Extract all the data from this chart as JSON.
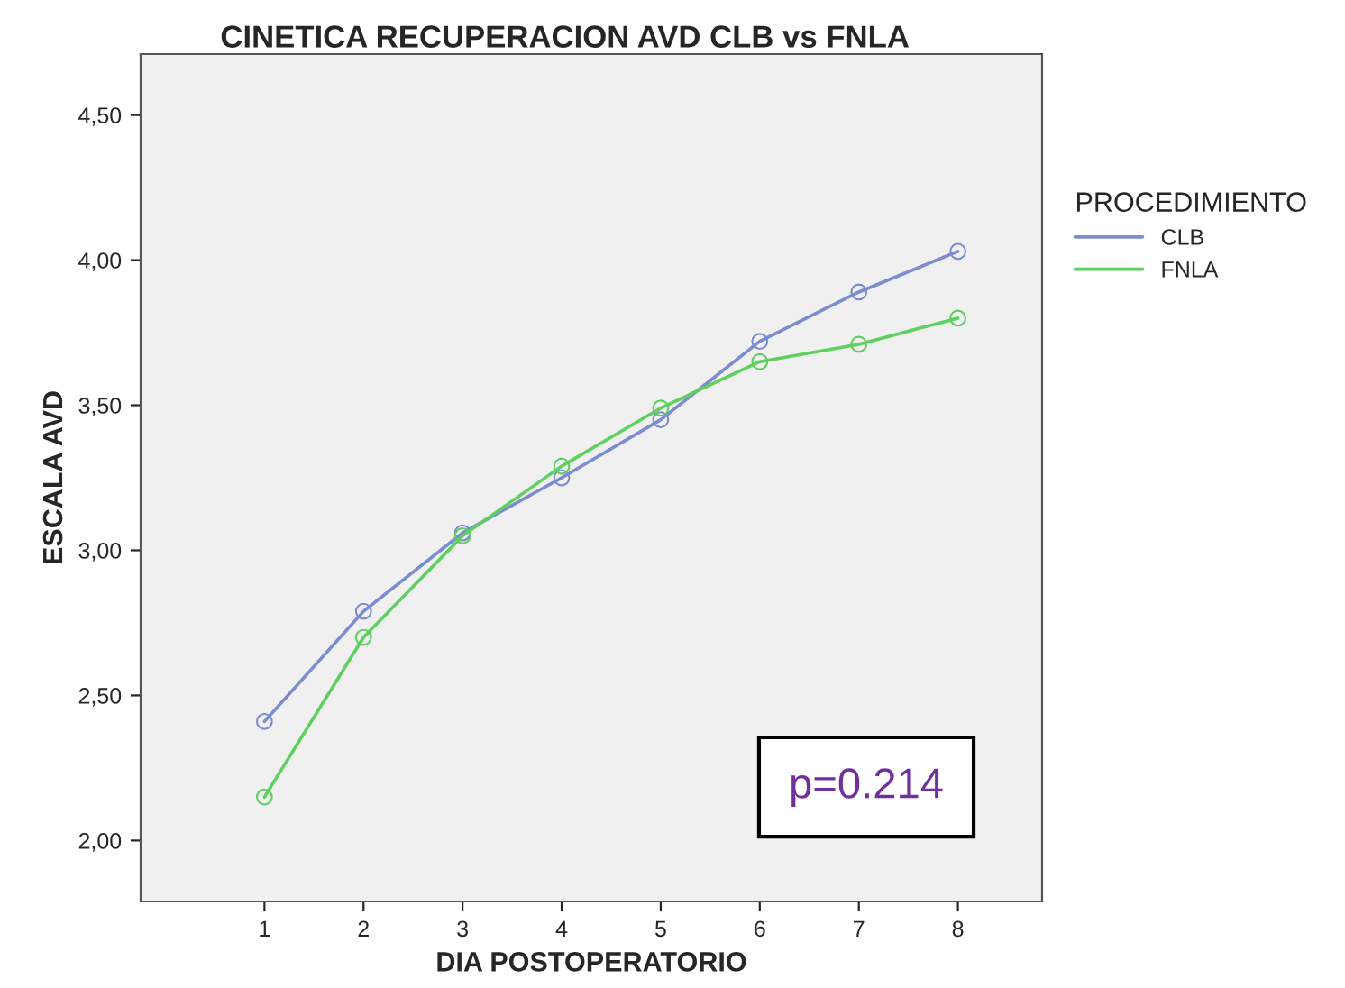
{
  "chart_data": {
    "type": "line",
    "title": "CINETICA RECUPERACION AVD CLB vs FNLA",
    "xlabel": "DIA POSTOPERATORIO",
    "ylabel": "ESCALA AVD",
    "legend_title": "PROCEDIMIENTO",
    "x": [
      1,
      2,
      3,
      4,
      5,
      6,
      7,
      8
    ],
    "series": [
      {
        "name": "CLB",
        "color": "#7b8cd0",
        "values": [
          2.41,
          2.79,
          3.06,
          3.25,
          3.45,
          3.72,
          3.89,
          4.03
        ]
      },
      {
        "name": "FNLA",
        "color": "#5fcf5f",
        "values": [
          2.15,
          2.7,
          3.05,
          3.29,
          3.49,
          3.65,
          3.71,
          3.8
        ]
      }
    ],
    "xlim": [
      -0.25,
      8.85
    ],
    "xticks": [
      1,
      2,
      3,
      4,
      5,
      6,
      7,
      8
    ],
    "ylim": [
      1.79,
      4.71
    ],
    "yticks": [
      {
        "value": 2,
        "label": "2,00"
      },
      {
        "value": 2.5,
        "label": "2,50"
      },
      {
        "value": 3,
        "label": "3,00"
      },
      {
        "value": 3.5,
        "label": "3,50"
      },
      {
        "value": 4,
        "label": "4,00"
      },
      {
        "value": 4.5,
        "label": "4,50"
      }
    ],
    "marker": "circle",
    "line_style": "solid",
    "grid": false,
    "legend": "right",
    "annotations": [
      "p=0.214"
    ]
  }
}
